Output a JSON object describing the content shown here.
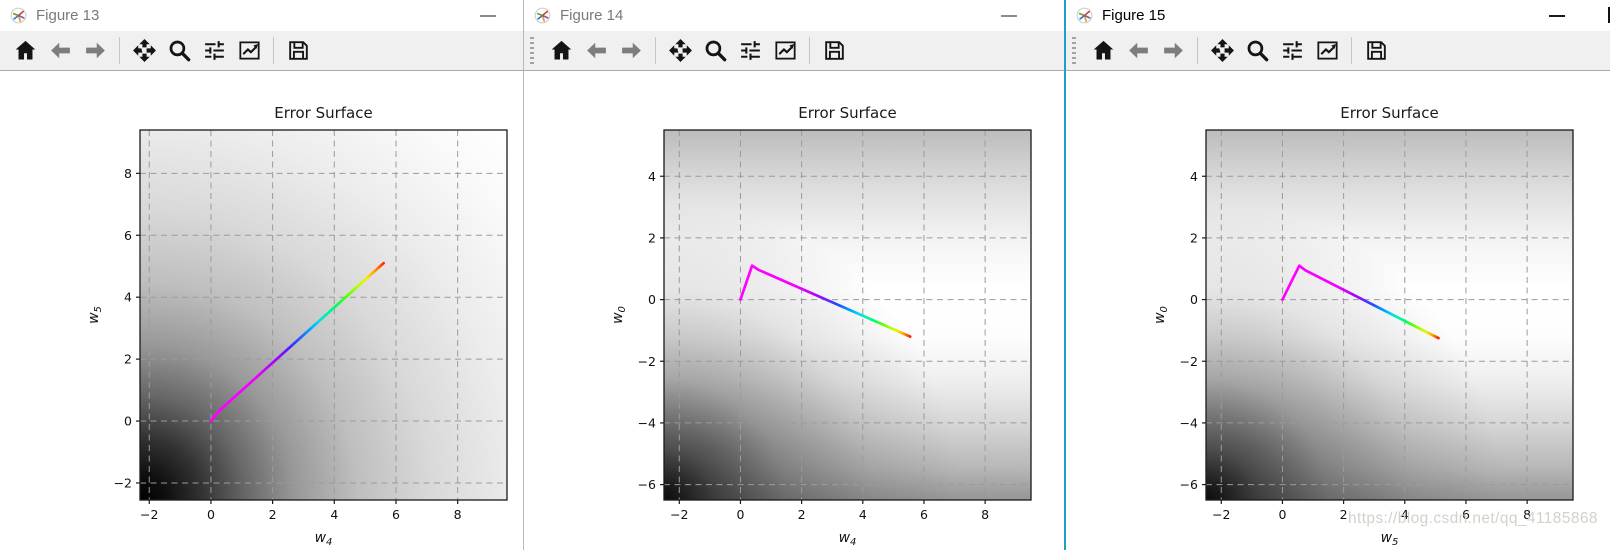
{
  "windows": [
    {
      "title": "Figure 13",
      "state": "inactive",
      "toolbar_drag_handle": false
    },
    {
      "title": "Figure 14",
      "state": "inactive",
      "toolbar_drag_handle": true
    },
    {
      "title": "Figure 15",
      "state": "active",
      "toolbar_drag_handle": true
    }
  ],
  "toolbar": {
    "buttons": [
      {
        "name": "home"
      },
      {
        "name": "back"
      },
      {
        "name": "forward"
      },
      {
        "name": "separator"
      },
      {
        "name": "pan"
      },
      {
        "name": "zoom"
      },
      {
        "name": "subplots"
      },
      {
        "name": "customize"
      },
      {
        "name": "separator"
      },
      {
        "name": "save"
      }
    ]
  },
  "watermark": {
    "text": "https://blog.csdn.net/qq_41185868"
  },
  "colors": {
    "active_border": "#1e9fc6",
    "toolbar_bg": "#f0f0f0",
    "inactive_title": "#7a7a7a",
    "active_title": "#000000",
    "watermark": "#d4d1cb",
    "grid": "#9b9b9b"
  },
  "surface_styles": {
    "corner-bowl": {
      "radial": [
        [
          0,
          "#000000"
        ],
        [
          0.05,
          "#0f0f0f"
        ],
        [
          0.12,
          "#333333"
        ],
        [
          0.2,
          "#666666"
        ],
        [
          0.3,
          "#999999"
        ],
        [
          0.42,
          "#bfbfbf"
        ],
        [
          0.56,
          "#d9d9d9"
        ],
        [
          0.72,
          "#ececec"
        ],
        [
          0.88,
          "#f9f9f9"
        ],
        [
          1,
          "#ffffff"
        ]
      ]
    },
    "valley": {
      "vertical": [
        [
          0,
          "#bcbcbc"
        ],
        [
          0.16,
          "#dedede"
        ],
        [
          0.3,
          "#f4f4f4"
        ],
        [
          0.43,
          "#ffffff"
        ],
        [
          0.56,
          "#fdfdfd"
        ],
        [
          0.68,
          "#eeeeee"
        ],
        [
          0.8,
          "#d5d5d5"
        ],
        [
          0.91,
          "#b8b8b8"
        ],
        [
          1,
          "#979797"
        ]
      ],
      "corner_blob": [
        [
          0,
          "rgba(0,0,0,0.93)"
        ],
        [
          0.15,
          "rgba(0,0,0,0.6)"
        ],
        [
          0.35,
          "rgba(0,0,0,0.3)"
        ],
        [
          0.6,
          "rgba(0,0,0,0.1)"
        ],
        [
          0.85,
          "rgba(0,0,0,0)"
        ],
        [
          1,
          "rgba(0,0,0,0)"
        ]
      ]
    }
  },
  "chart_data": [
    {
      "figure": "Figure 13",
      "type": "line",
      "title": "Error Surface",
      "xlabel": {
        "base": "w",
        "sub": "4"
      },
      "ylabel": {
        "base": "w",
        "sub": "5"
      },
      "xlim": [
        -2.3,
        9.6
      ],
      "ylim": [
        -2.55,
        9.4
      ],
      "xticks": [
        -2,
        0,
        2,
        4,
        6,
        8
      ],
      "yticks": [
        -2,
        0,
        2,
        4,
        6,
        8
      ],
      "grid": true,
      "surface": "corner-bowl",
      "trajectory": {
        "points": [
          [
            0,
            0
          ],
          [
            0.12,
            0.16
          ],
          [
            0.3,
            0.36
          ],
          [
            0.52,
            0.56
          ],
          [
            5.6,
            5.1
          ]
        ],
        "color_stops": [
          [
            0,
            "#ff00ff"
          ],
          [
            0.26,
            "#f400ff"
          ],
          [
            0.38,
            "#a500ff"
          ],
          [
            0.46,
            "#4a20ff"
          ],
          [
            0.52,
            "#1f5aff"
          ],
          [
            0.58,
            "#00a8ff"
          ],
          [
            0.63,
            "#00ddee"
          ],
          [
            0.68,
            "#00efae"
          ],
          [
            0.73,
            "#00ff55"
          ],
          [
            0.79,
            "#58ff00"
          ],
          [
            0.85,
            "#b2ff00"
          ],
          [
            0.9,
            "#f2ef00"
          ],
          [
            0.94,
            "#ffae00"
          ],
          [
            1,
            "#ff2a00"
          ]
        ]
      }
    },
    {
      "figure": "Figure 14",
      "type": "line",
      "title": "Error Surface",
      "xlabel": {
        "base": "w",
        "sub": "4"
      },
      "ylabel": {
        "base": "w",
        "sub": "0"
      },
      "xlim": [
        -2.5,
        9.5
      ],
      "ylim": [
        -6.5,
        5.5
      ],
      "xticks": [
        -2,
        0,
        2,
        4,
        6,
        8
      ],
      "yticks": [
        -6,
        -4,
        -2,
        0,
        2,
        4
      ],
      "grid": true,
      "surface": "valley",
      "trajectory": {
        "points": [
          [
            0,
            0
          ],
          [
            0.38,
            1.1
          ],
          [
            0.58,
            0.97
          ],
          [
            5.55,
            -1.2
          ]
        ],
        "color_stops": [
          [
            0,
            "#ff00ff"
          ],
          [
            0.3,
            "#f300ff"
          ],
          [
            0.43,
            "#ae00ff"
          ],
          [
            0.5,
            "#5c2bff"
          ],
          [
            0.56,
            "#1f4fff"
          ],
          [
            0.62,
            "#0097ff"
          ],
          [
            0.68,
            "#00d6ef"
          ],
          [
            0.73,
            "#00f2b0"
          ],
          [
            0.78,
            "#00ff66"
          ],
          [
            0.83,
            "#5aff00"
          ],
          [
            0.88,
            "#b6ff00"
          ],
          [
            0.92,
            "#efef00"
          ],
          [
            0.96,
            "#ffa000"
          ],
          [
            1,
            "#ff1e00"
          ]
        ]
      }
    },
    {
      "figure": "Figure 15",
      "type": "line",
      "title": "Error Surface",
      "xlabel": {
        "base": "w",
        "sub": "5"
      },
      "ylabel": {
        "base": "w",
        "sub": "0"
      },
      "xlim": [
        -2.5,
        9.5
      ],
      "ylim": [
        -6.5,
        5.5
      ],
      "xticks": [
        -2,
        0,
        2,
        4,
        6,
        8
      ],
      "yticks": [
        -6,
        -4,
        -2,
        0,
        2,
        4
      ],
      "grid": true,
      "surface": "valley",
      "trajectory": {
        "points": [
          [
            0,
            0
          ],
          [
            0.55,
            1.1
          ],
          [
            0.75,
            0.95
          ],
          [
            5.1,
            -1.25
          ]
        ],
        "color_stops": [
          [
            0,
            "#ff00ff"
          ],
          [
            0.3,
            "#f300ff"
          ],
          [
            0.43,
            "#ae00ff"
          ],
          [
            0.5,
            "#5c2bff"
          ],
          [
            0.56,
            "#1f4fff"
          ],
          [
            0.62,
            "#0097ff"
          ],
          [
            0.68,
            "#00d6ef"
          ],
          [
            0.73,
            "#00f2b0"
          ],
          [
            0.78,
            "#00ff66"
          ],
          [
            0.83,
            "#5aff00"
          ],
          [
            0.88,
            "#b6ff00"
          ],
          [
            0.92,
            "#efef00"
          ],
          [
            0.96,
            "#ffa000"
          ],
          [
            1,
            "#ff1e00"
          ]
        ]
      }
    }
  ]
}
